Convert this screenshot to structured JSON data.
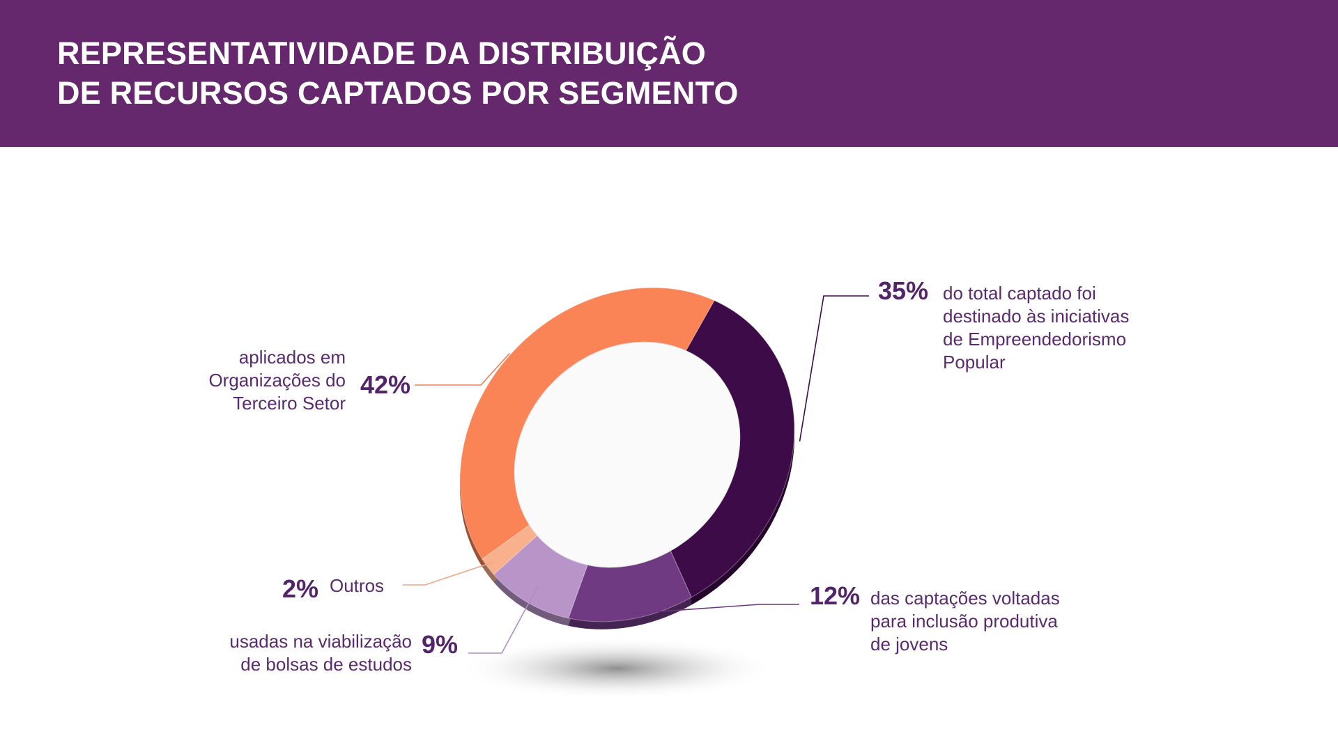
{
  "header": {
    "title_line1": "REPRESENTATIVIDADE DA DISTRIBUIÇÃO",
    "title_line2": "DE RECURSOS CAPTADOS POR SEGMENTO"
  },
  "chart_data": {
    "type": "pie",
    "title": "REPRESENTATIVIDADE DA DISTRIBUIÇÃO DE RECURSOS CAPTADOS POR SEGMENTO",
    "unit": "%",
    "slices": [
      {
        "value": 35,
        "label": "35%",
        "description": [
          "do total captado foi",
          "destinado às iniciativas",
          "de Empreendedorismo",
          "Popular"
        ],
        "color": "#3d0b47"
      },
      {
        "value": 12,
        "label": "12%",
        "description": [
          "das captações voltadas",
          "para inclusão produtiva",
          "de jovens"
        ],
        "color": "#6f3a82"
      },
      {
        "value": 9,
        "label": "9%",
        "description": [
          "usadas na viabilização",
          "de bolsas de estudos"
        ],
        "color": "#b894c9"
      },
      {
        "value": 2,
        "label": "2%",
        "description": [
          "Outros"
        ],
        "color": "#f9b08d"
      },
      {
        "value": 42,
        "label": "42%",
        "description": [
          "aplicados em",
          "Organizações do",
          "Terceiro Setor"
        ],
        "color": "#fa8456"
      }
    ]
  }
}
